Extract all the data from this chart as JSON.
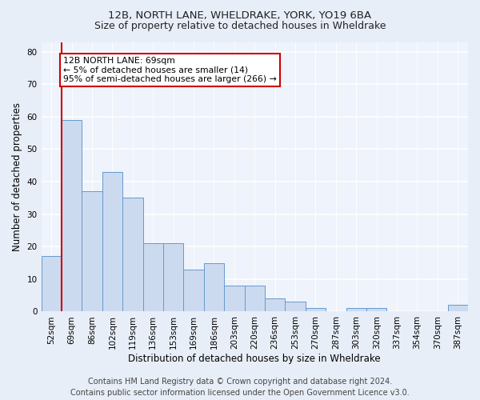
{
  "title1": "12B, NORTH LANE, WHELDRAKE, YORK, YO19 6BA",
  "title2": "Size of property relative to detached houses in Wheldrake",
  "xlabel": "Distribution of detached houses by size in Wheldrake",
  "ylabel": "Number of detached properties",
  "bins": [
    "52sqm",
    "69sqm",
    "86sqm",
    "102sqm",
    "119sqm",
    "136sqm",
    "153sqm",
    "169sqm",
    "186sqm",
    "203sqm",
    "220sqm",
    "236sqm",
    "253sqm",
    "270sqm",
    "287sqm",
    "303sqm",
    "320sqm",
    "337sqm",
    "354sqm",
    "370sqm",
    "387sqm"
  ],
  "values": [
    17,
    59,
    37,
    43,
    35,
    21,
    21,
    13,
    15,
    8,
    8,
    4,
    3,
    1,
    0,
    1,
    1,
    0,
    0,
    0,
    2
  ],
  "bar_color": "#ccdaf0",
  "bar_edge_color": "#6699cc",
  "highlight_bar_index": 1,
  "highlight_line_color": "#cc0000",
  "annotation_line1": "12B NORTH LANE: 69sqm",
  "annotation_line2": "← 5% of detached houses are smaller (14)",
  "annotation_line3": "95% of semi-detached houses are larger (266) →",
  "annotation_box_color": "#ffffff",
  "annotation_box_edge": "#cc0000",
  "ylim": [
    0,
    83
  ],
  "yticks": [
    0,
    10,
    20,
    30,
    40,
    50,
    60,
    70,
    80
  ],
  "bg_color": "#e8eef8",
  "plot_bg_color": "#eef3fc",
  "footer_text": "Contains HM Land Registry data © Crown copyright and database right 2024.\nContains public sector information licensed under the Open Government Licence v3.0.",
  "title1_fontsize": 9.5,
  "title2_fontsize": 9,
  "xlabel_fontsize": 8.5,
  "ylabel_fontsize": 8.5,
  "tick_fontsize": 7.5,
  "annotation_fontsize": 7.8,
  "footer_fontsize": 7
}
